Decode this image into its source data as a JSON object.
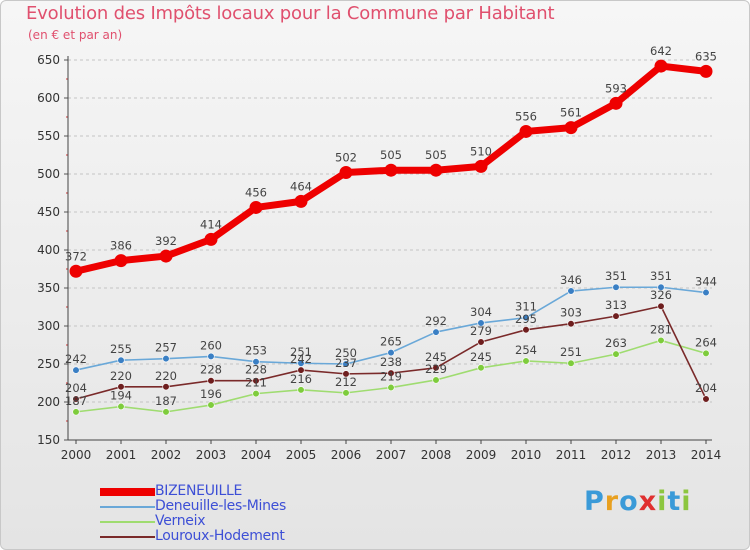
{
  "title": "Evolution des Impôts locaux pour la Commune par Habitant",
  "subtitle": "(en € et par an)",
  "logo": {
    "letters": [
      "P",
      "r",
      "o",
      "x",
      "i",
      "t",
      "i"
    ],
    "colors": [
      "#3a9ad8",
      "#e8a020",
      "#3a9ad8",
      "#e03030",
      "#8cc63f",
      "#3a9ad8",
      "#8cc63f"
    ]
  },
  "chart_data": {
    "type": "line",
    "title": "Evolution des Impôts locaux pour la Commune par Habitant",
    "ylabel": "(en € et par an)",
    "xlabel": "",
    "ylim": [
      150,
      650
    ],
    "yticks": [
      150,
      200,
      250,
      300,
      350,
      400,
      450,
      500,
      550,
      600,
      650
    ],
    "grid": "horizontal dashed",
    "categories": [
      "2000",
      "2001",
      "2002",
      "2003",
      "2004",
      "2005",
      "2006",
      "2007",
      "2008",
      "2009",
      "2010",
      "2011",
      "2012",
      "2013",
      "2014"
    ],
    "series": [
      {
        "name": "BIZENEUILLE",
        "color": "#ee0000",
        "values": [
          372,
          386,
          392,
          414,
          456,
          464,
          502,
          505,
          505,
          510,
          556,
          561,
          593,
          642,
          635
        ]
      },
      {
        "name": "Deneuille-les-Mines",
        "color": "#6aa8d8",
        "marker": "#3a7fc4",
        "values": [
          242,
          255,
          257,
          260,
          253,
          251,
          250,
          265,
          292,
          304,
          311,
          346,
          351,
          351,
          344
        ]
      },
      {
        "name": "Verneix",
        "color": "#9fdc70",
        "marker": "#7ecc3c",
        "values": [
          187,
          194,
          187,
          196,
          211,
          216,
          212,
          219,
          229,
          245,
          254,
          251,
          263,
          281,
          264
        ]
      },
      {
        "name": "Louroux-Hodement",
        "color": "#7a2a2a",
        "marker": "#6e1e1e",
        "values": [
          204,
          220,
          220,
          228,
          228,
          242,
          237,
          238,
          245,
          279,
          295,
          303,
          313,
          326,
          204
        ]
      }
    ]
  }
}
